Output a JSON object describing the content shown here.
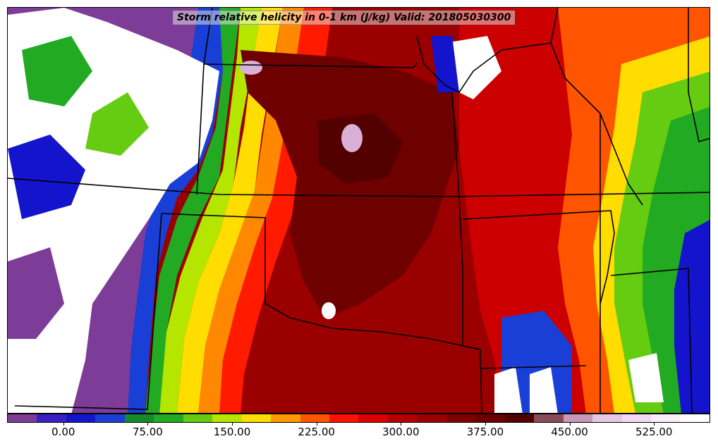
{
  "title": "Storm relative helicity in 0-1 km (J/kg) Valid: 201805030300",
  "colorbar": {
    "colors": [
      "#7d3c98",
      "#3a1fc2",
      "#1414cc",
      "#1a3fd6",
      "#158a2a",
      "#22aa22",
      "#66cc11",
      "#b4e600",
      "#ffdd00",
      "#ff9900",
      "#ff5500",
      "#ff1100",
      "#dd0000",
      "#b40000",
      "#9a0000",
      "#7d0000",
      "#6a0000",
      "#520000",
      "#8b4a5a",
      "#c898b8",
      "#e6c8e6",
      "#f3d9f3",
      "#faeefa",
      "#ffffff"
    ],
    "tick_labels": [
      "0.00",
      "75.00",
      "150.00",
      "225.00",
      "300.00",
      "375.00",
      "450.00",
      "525.00"
    ],
    "tick_values": [
      0,
      75,
      150,
      225,
      300,
      375,
      450,
      525
    ],
    "range": [
      -50,
      575
    ]
  },
  "map": {
    "region": "Southern Great Plains / Mississippi Valley",
    "palette": {
      "white": "#ffffff",
      "purple": "#7d3c98",
      "blue": "#1414cc",
      "green": "#22aa22",
      "lime": "#9ee600",
      "yellow": "#ffdd00",
      "orange": "#ff8800",
      "red": "#ff1a00",
      "darkred": "#b00000",
      "maroon": "#6e0000",
      "pink": "#d8b0d8",
      "border": "#000000"
    }
  }
}
